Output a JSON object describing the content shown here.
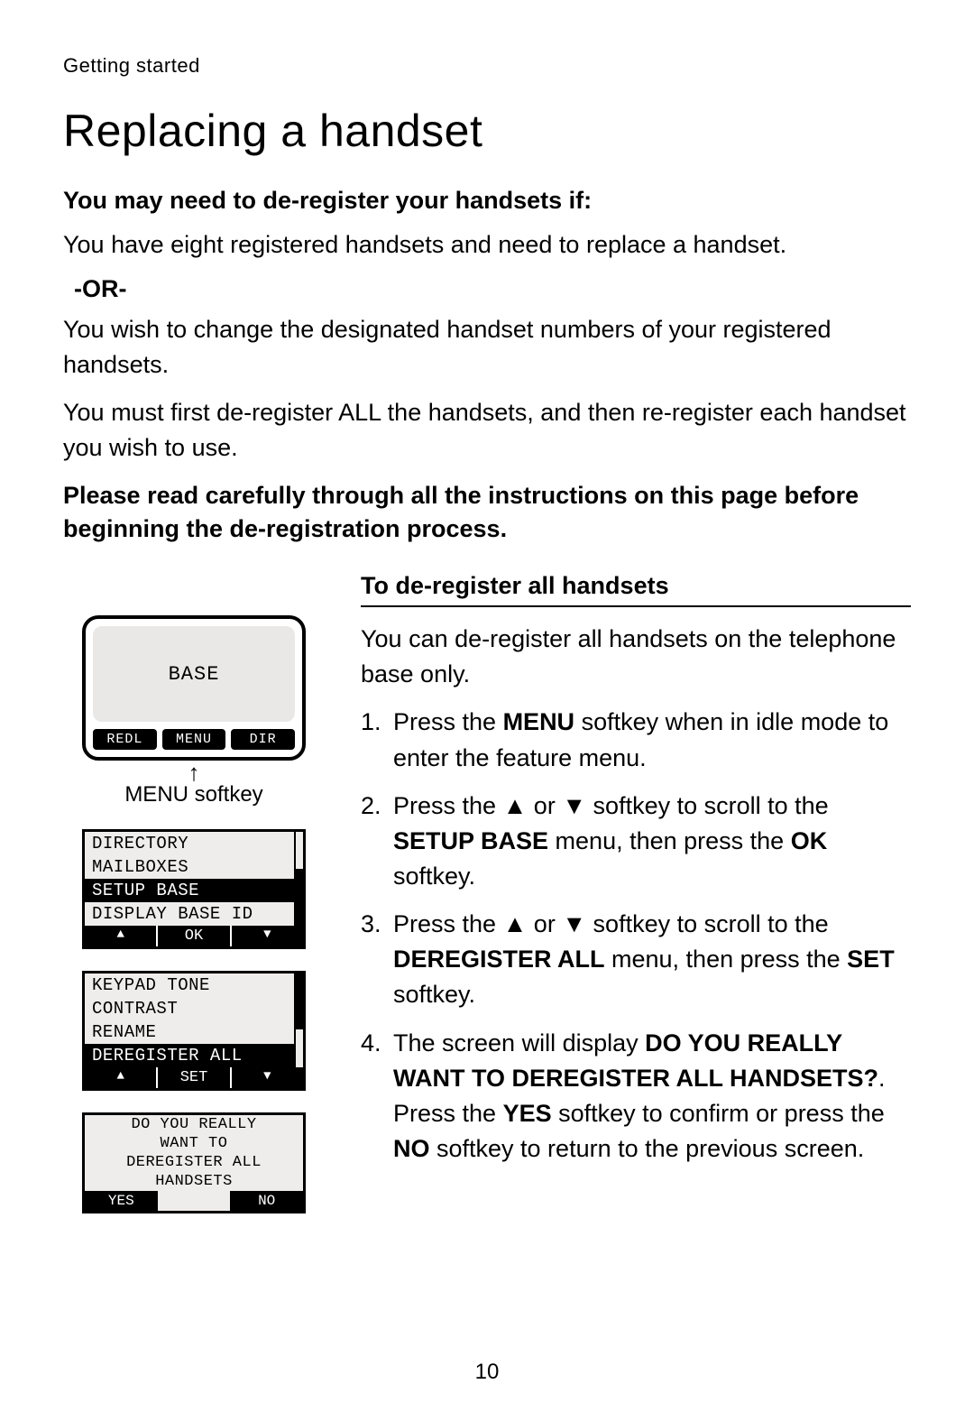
{
  "breadcrumb": "Getting started",
  "title": "Replacing a handset",
  "intro_bold": "You may need to de-register your handsets if:",
  "case1": "You have eight registered handsets and need to replace a handset.",
  "or_label": "-OR-",
  "case2": "You wish to change the designated handset numbers of your registered handsets.",
  "must_first": "You must first de-register ALL the handsets, and then re-register each handset you wish to use.",
  "warning": "Please read carefully through all the instructions on this page before beginning the de-registration process.",
  "sub_heading": "To de-register all handsets",
  "lead_in": "You can de-register all handsets on the telephone base only.",
  "steps": {
    "s1_a": "Press the ",
    "s1_b": "MENU",
    "s1_c": " softkey when in idle mode to enter the feature menu.",
    "s2_a": "Press the ",
    "s2_b": " or ",
    "s2_c": " softkey to scroll to the ",
    "s2_d": "SETUP BASE",
    "s2_e": " menu, then press the ",
    "s2_f": "OK",
    "s2_g": " softkey.",
    "s3_a": "Press the ",
    "s3_b": " or ",
    "s3_c": " softkey to scroll to the ",
    "s3_d": "DEREGISTER ALL",
    "s3_e": " menu, then press the ",
    "s3_f": "SET",
    "s3_g": " softkey.",
    "s4_a": "The screen will display ",
    "s4_b": "DO YOU REALLY WANT TO DEREGISTER ALL HANDSETS?",
    "s4_c": ". Press the ",
    "s4_d": "YES",
    "s4_e": " softkey to confirm or press the ",
    "s4_f": "NO",
    "s4_g": " softkey to return to the previous screen."
  },
  "screen_idle": {
    "display": "BASE",
    "softkeys": [
      "REDL",
      "MENU",
      "DIR"
    ]
  },
  "menu_softkey_caption": "MENU softkey",
  "screen_menu1": {
    "rows": [
      "DIRECTORY",
      "MAILBOXES",
      "SETUP BASE",
      "DISPLAY BASE ID"
    ],
    "highlighted_index": 2,
    "softkeys": [
      "▲",
      "OK",
      "▼"
    ]
  },
  "screen_menu2": {
    "rows": [
      "KEYPAD TONE",
      "CONTRAST",
      "RENAME",
      "DEREGISTER ALL"
    ],
    "highlighted_index": 3,
    "softkeys": [
      "▲",
      "SET",
      "▼"
    ]
  },
  "screen_confirm": {
    "lines": [
      "DO YOU REALLY",
      "WANT TO",
      "DEREGISTER ALL",
      "HANDSETS"
    ],
    "softkeys": [
      "YES",
      "",
      "NO"
    ]
  },
  "page_number": "10"
}
